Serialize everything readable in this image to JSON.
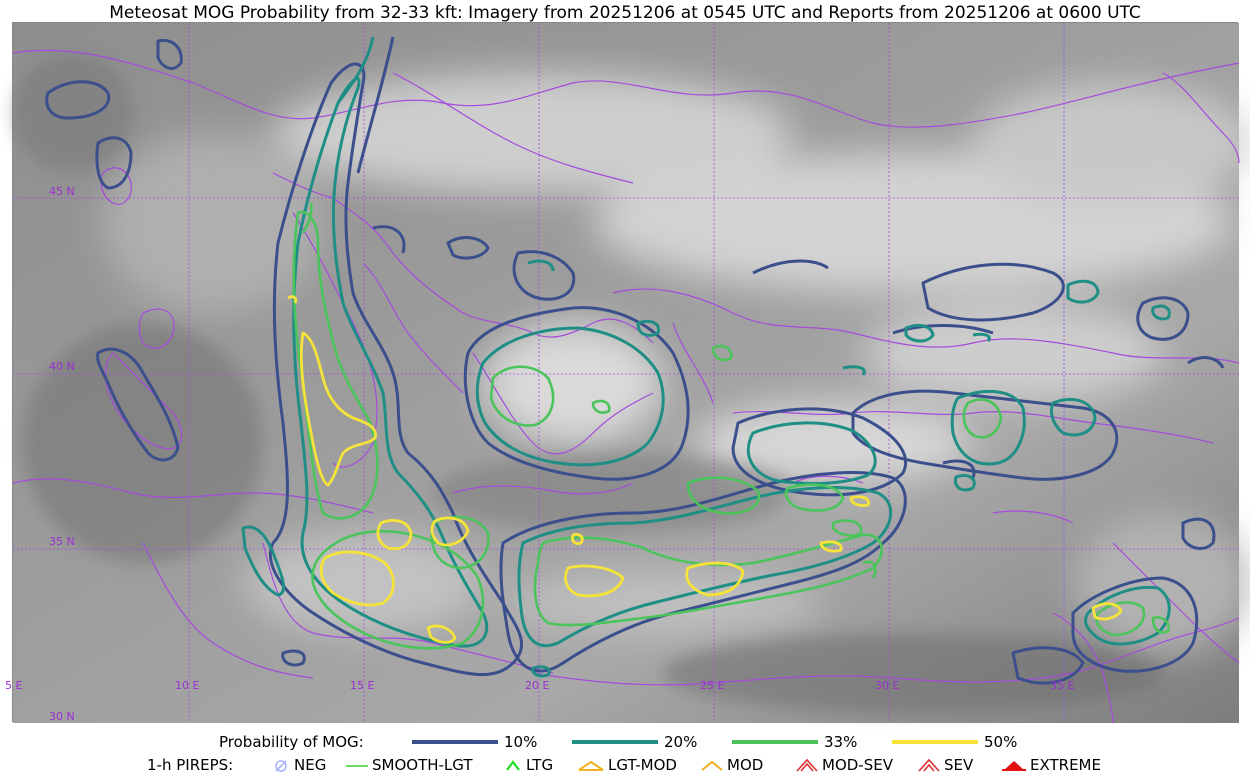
{
  "title": "Meteosat MOG Probability from 32-33 kft: Imagery from 20251206 at 0545 UTC and Reports from 20251206 at 0600 UTC",
  "map": {
    "lat_labels": [
      "45 N",
      "40 N",
      "35 N",
      "30 N"
    ],
    "lon_labels": [
      "5 E",
      "10 E",
      "15 E",
      "20 E",
      "25 E",
      "30 E",
      "35 E"
    ],
    "label_color": "#9b30d0",
    "border_color": "#a64bdc",
    "contour_colors": {
      "p10": "#3b4f8c",
      "p20": "#1f8f86",
      "p33": "#4cc45c",
      "p50": "#f5e33a"
    }
  },
  "legend": {
    "probability_title": "Probability of MOG:",
    "probability_items": [
      {
        "label": "10%",
        "color": "#3b4f8c"
      },
      {
        "label": "20%",
        "color": "#1f8f86"
      },
      {
        "label": "33%",
        "color": "#4cc45c"
      },
      {
        "label": "50%",
        "color": "#f5e33a"
      }
    ],
    "pireps_title": "1-h PIREPS:",
    "pirep_items": [
      {
        "label": "NEG",
        "icon": "neg-icon",
        "color": "#aab0ff"
      },
      {
        "label": "SMOOTH-LGT",
        "icon": "smooth-lgt-icon",
        "color": "#33cc33"
      },
      {
        "label": "LTG",
        "icon": "ltg-icon",
        "color": "#22dd22"
      },
      {
        "label": "LGT-MOD",
        "icon": "lgt-mod-icon",
        "color": "#f0b020"
      },
      {
        "label": "MOD",
        "icon": "mod-icon",
        "color": "#f0b020"
      },
      {
        "label": "MOD-SEV",
        "icon": "mod-sev-icon",
        "color": "#e03030"
      },
      {
        "label": "SEV",
        "icon": "sev-icon",
        "color": "#e03030"
      },
      {
        "label": "EXTREME",
        "icon": "extreme-icon",
        "color": "#e01010"
      }
    ]
  }
}
